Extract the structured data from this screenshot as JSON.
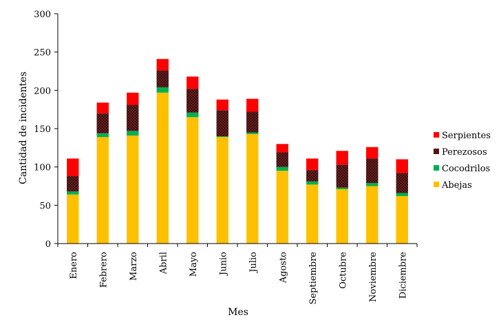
{
  "chart_data": {
    "type": "bar",
    "stacked": true,
    "title": "",
    "xlabel": "Mes",
    "ylabel": "Cantidad de incidentes",
    "ylim": [
      0,
      300
    ],
    "yticks": [
      0,
      50,
      100,
      150,
      200,
      250,
      300
    ],
    "grid": false,
    "legend_position": "right",
    "categories": [
      "Enero",
      "Febrero",
      "Marzo",
      "Abril",
      "Mayo",
      "Junio",
      "Julio",
      "Agosto",
      "Septiembre",
      "Octubre",
      "Noviembre",
      "Diciembre"
    ],
    "series": [
      {
        "name": "Abejas",
        "color": "#FFC000",
        "values": [
          64,
          139,
          141,
          197,
          165,
          139,
          143,
          95,
          77,
          71,
          75,
          62
        ]
      },
      {
        "name": "Cocodrilos",
        "color": "#00B050",
        "values": [
          4,
          5,
          6,
          7,
          6,
          1,
          2,
          5,
          4,
          2,
          4,
          4
        ]
      },
      {
        "name": "Perezosos",
        "color": "#5C1A1A",
        "values": [
          20,
          26,
          34,
          22,
          31,
          34,
          27,
          19,
          15,
          30,
          32,
          26
        ]
      },
      {
        "name": "Serpientes",
        "color": "#FF0000",
        "values": [
          23,
          14,
          16,
          15,
          16,
          14,
          17,
          11,
          15,
          18,
          15,
          18
        ]
      }
    ]
  }
}
